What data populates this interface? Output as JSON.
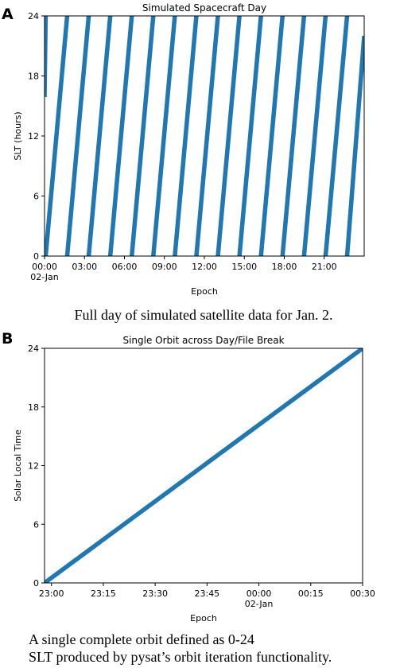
{
  "figure": {
    "panels": [
      {
        "letter": "A",
        "caption": "Full day of simulated satellite data for Jan. 2."
      },
      {
        "letter": "B",
        "caption_lines": [
          "A single complete orbit defined as 0-24",
          "SLT produced by pysat’s orbit iteration functionality."
        ]
      }
    ]
  },
  "chart_data": [
    {
      "type": "line",
      "title": "Simulated Spacecraft Day",
      "xlabel": "Epoch",
      "ylabel": "SLT (hours)",
      "ylim": [
        0,
        24
      ],
      "xlim": [
        "2009-01-02 00:00",
        "2009-01-03 00:00"
      ],
      "x_ticks": [
        {
          "label": "00:00",
          "sub": "02-Jan",
          "value": "00:00"
        },
        {
          "label": "03:00",
          "value": "03:00"
        },
        {
          "label": "06:00",
          "value": "06:00"
        },
        {
          "label": "09:00",
          "value": "09:00"
        },
        {
          "label": "12:00",
          "value": "12:00"
        },
        {
          "label": "15:00",
          "value": "15:00"
        },
        {
          "label": "18:00",
          "value": "18:00"
        },
        {
          "label": "21:00",
          "value": "21:00"
        }
      ],
      "y_ticks": [
        0,
        6,
        12,
        18,
        24
      ],
      "grid": false,
      "color": "#1f77b4",
      "series": [
        {
          "segments": [
            [
              [
                "00:00",
                15.9
              ],
              [
                "00:05",
                24
              ]
            ],
            [
              [
                "00:05",
                0
              ],
              [
                "01:42",
                24
              ]
            ],
            [
              [
                "01:42",
                0
              ],
              [
                "03:19",
                24
              ]
            ],
            [
              [
                "03:19",
                0
              ],
              [
                "04:56",
                24
              ]
            ],
            [
              [
                "04:56",
                0
              ],
              [
                "06:33",
                24
              ]
            ],
            [
              [
                "06:33",
                0
              ],
              [
                "08:10",
                24
              ]
            ],
            [
              [
                "08:10",
                0
              ],
              [
                "09:47",
                24
              ]
            ],
            [
              [
                "09:47",
                0
              ],
              [
                "11:24",
                24
              ]
            ],
            [
              [
                "11:24",
                0
              ],
              [
                "13:01",
                24
              ]
            ],
            [
              [
                "13:01",
                0
              ],
              [
                "14:38",
                24
              ]
            ],
            [
              [
                "14:38",
                0
              ],
              [
                "16:15",
                24
              ]
            ],
            [
              [
                "16:15",
                0
              ],
              [
                "17:52",
                24
              ]
            ],
            [
              [
                "17:52",
                0
              ],
              [
                "19:29",
                24
              ]
            ],
            [
              [
                "19:29",
                0
              ],
              [
                "21:06",
                24
              ]
            ],
            [
              [
                "21:06",
                0
              ],
              [
                "22:43",
                24
              ]
            ],
            [
              [
                "22:43",
                0
              ],
              [
                "24:00",
                22.0
              ]
            ]
          ]
        }
      ]
    },
    {
      "type": "line",
      "title": "Single Orbit across Day/File Break",
      "xlabel": "Epoch",
      "ylabel": "Solar Local Time",
      "ylim": [
        0,
        24
      ],
      "xlim": [
        "2009-01-01 22:58",
        "2009-01-02 00:30"
      ],
      "x_ticks": [
        {
          "label": "23:00",
          "value": "23:00"
        },
        {
          "label": "23:15",
          "value": "23:15"
        },
        {
          "label": "23:30",
          "value": "23:30"
        },
        {
          "label": "23:45",
          "value": "23:45"
        },
        {
          "label": "00:00",
          "sub": "02-Jan",
          "value": "24:00"
        },
        {
          "label": "00:15",
          "value": "24:15"
        },
        {
          "label": "00:30",
          "value": "24:30"
        }
      ],
      "y_ticks": [
        0,
        6,
        12,
        18,
        24
      ],
      "grid": false,
      "color": "#1f77b4",
      "series": [
        {
          "segments": [
            [
              [
                "22:58",
                0
              ],
              [
                "24:30",
                24
              ]
            ]
          ]
        }
      ]
    }
  ]
}
